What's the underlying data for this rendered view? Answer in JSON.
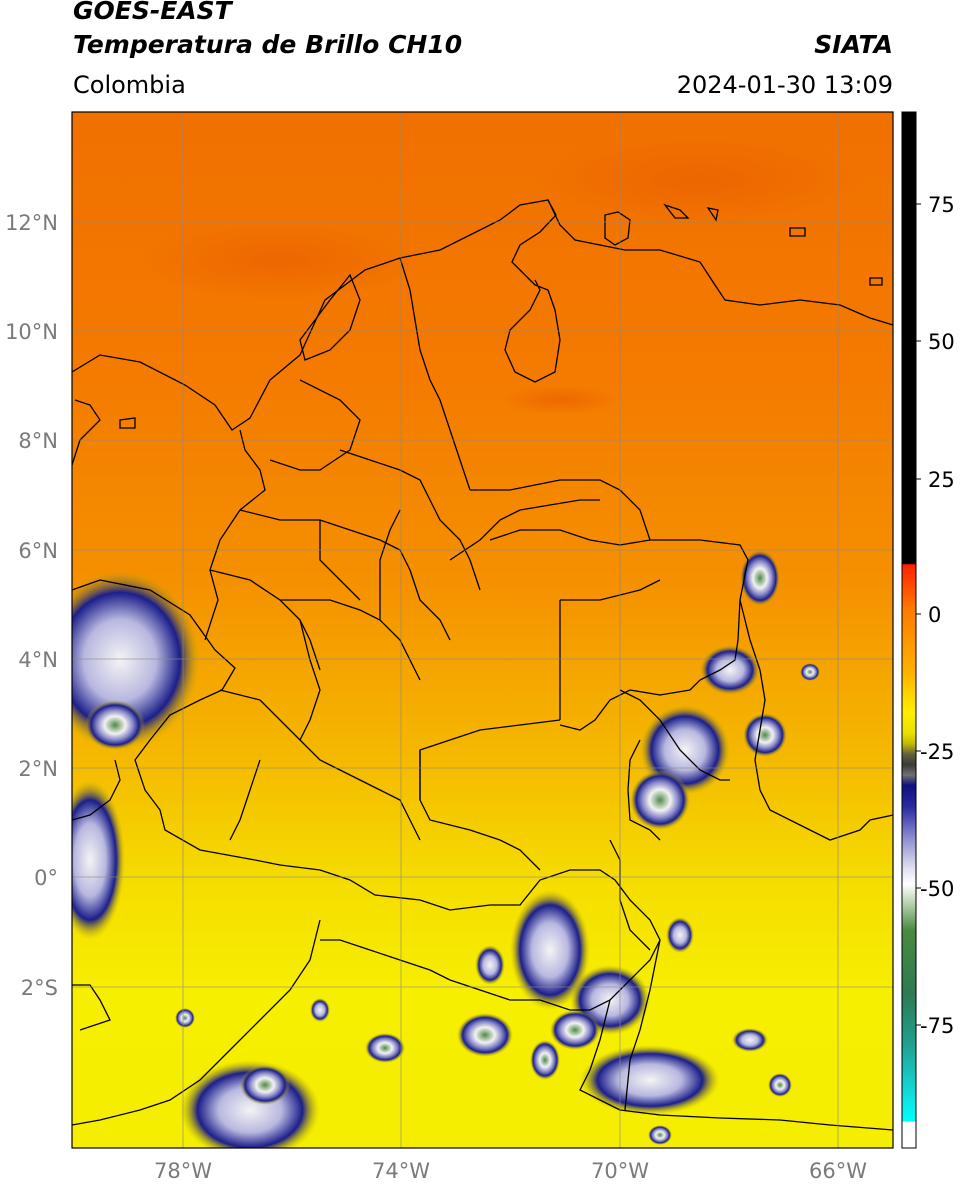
{
  "header": {
    "line1": "GOES-EAST",
    "line2": "Temperatura de Brillo CH10",
    "region": "Colombia",
    "source": "SIATA",
    "datetime": "2024-01-30 13:09"
  },
  "map": {
    "lat_ticks": [
      "12°N",
      "10°N",
      "8°N",
      "6°N",
      "4°N",
      "2°N",
      "0°",
      "2°S"
    ],
    "lon_ticks": [
      "78°W",
      "74°W",
      "70°W",
      "66°W"
    ],
    "colorbar_ticks": [
      "75",
      "50",
      "25",
      "0",
      "-25",
      "-50",
      "-75"
    ],
    "colors": {
      "warm_top": "#f06a00",
      "mid": "#f59400",
      "cool_bottom": "#f5ee00",
      "cloud_cold": "#1c1f8a",
      "cloud_white": "#f2f2f2",
      "cloud_green": "#4f8a47",
      "border": "#000000",
      "grid": "#8a8a8a"
    }
  }
}
